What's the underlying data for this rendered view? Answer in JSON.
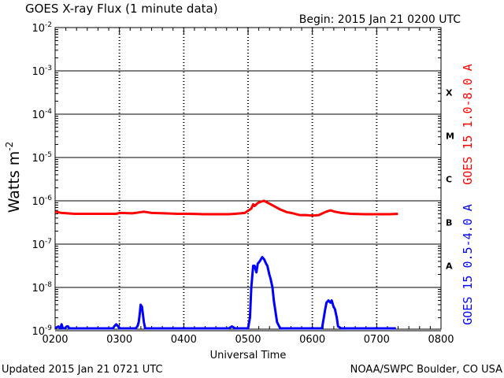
{
  "chart_data": {
    "type": "line",
    "title": "GOES X-ray Flux (1 minute data)",
    "begin_label": "Begin: 2015 Jan 21 0200 UTC",
    "xlabel": "Universal Time",
    "ylabel_main": "Watts m",
    "ylabel_sup": "-2",
    "x_ticks": [
      "0200",
      "0300",
      "0400",
      "0500",
      "0600",
      "0700",
      "0800"
    ],
    "x_range_hours": [
      2,
      8
    ],
    "y_ticks": [
      {
        "base": "10",
        "exp": "-2"
      },
      {
        "base": "10",
        "exp": "-3"
      },
      {
        "base": "10",
        "exp": "-4"
      },
      {
        "base": "10",
        "exp": "-5"
      },
      {
        "base": "10",
        "exp": "-6"
      },
      {
        "base": "10",
        "exp": "-7"
      },
      {
        "base": "10",
        "exp": "-8"
      },
      {
        "base": "10",
        "exp": "-9"
      }
    ],
    "y_scale": "log",
    "y_range_exponent": [
      -9.1,
      -2
    ],
    "flare_classes": [
      {
        "label": "X",
        "level_exp": -3.5
      },
      {
        "label": "M",
        "level_exp": -4.5
      },
      {
        "label": "C",
        "level_exp": -5.5
      },
      {
        "label": "B",
        "level_exp": -6.5
      },
      {
        "label": "A",
        "level_exp": -7.5
      }
    ],
    "series": [
      {
        "name": "GOES 15 1.0-8.0 A",
        "color": "#ff0000",
        "x_hours": [
          2.0,
          2.1,
          2.3,
          2.5,
          2.7,
          2.95,
          3.0,
          3.2,
          3.3,
          3.38,
          3.5,
          3.7,
          3.9,
          4.1,
          4.3,
          4.5,
          4.7,
          4.8,
          4.95,
          5.05,
          5.08,
          5.1,
          5.15,
          5.2,
          5.25,
          5.3,
          5.4,
          5.5,
          5.6,
          5.7,
          5.8,
          5.9,
          6.0,
          6.1,
          6.2,
          6.28,
          6.35,
          6.45,
          6.6,
          6.8,
          7.0,
          7.2,
          7.33
        ],
        "log10_flux": [
          -6.25,
          -6.28,
          -6.3,
          -6.3,
          -6.3,
          -6.3,
          -6.28,
          -6.29,
          -6.27,
          -6.25,
          -6.28,
          -6.29,
          -6.3,
          -6.3,
          -6.31,
          -6.31,
          -6.31,
          -6.3,
          -6.28,
          -6.18,
          -6.08,
          -6.12,
          -6.05,
          -6.02,
          -6.0,
          -6.04,
          -6.12,
          -6.2,
          -6.26,
          -6.29,
          -6.33,
          -6.33,
          -6.34,
          -6.33,
          -6.26,
          -6.22,
          -6.25,
          -6.28,
          -6.3,
          -6.31,
          -6.31,
          -6.31,
          -6.3
        ]
      },
      {
        "name": "GOES 15 0.5-4.0 A",
        "color": "#0000ff",
        "x_hours": [
          2.0,
          2.05,
          2.08,
          2.1,
          2.12,
          2.15,
          2.18,
          2.2,
          2.22,
          2.25,
          2.3,
          2.35,
          2.4,
          2.6,
          2.8,
          2.9,
          2.92,
          2.95,
          2.98,
          3.0,
          3.05,
          3.1,
          3.2,
          3.25,
          3.28,
          3.3,
          3.32,
          3.33,
          3.35,
          3.38,
          3.4,
          3.5,
          3.55,
          3.6,
          3.8,
          4.0,
          4.2,
          4.5,
          4.7,
          4.75,
          4.8,
          4.9,
          4.95,
          5.0,
          5.03,
          5.05,
          5.08,
          5.1,
          5.13,
          5.15,
          5.18,
          5.2,
          5.22,
          5.25,
          5.28,
          5.3,
          5.33,
          5.35,
          5.38,
          5.4,
          5.45,
          5.5,
          5.6,
          5.8,
          6.0,
          6.1,
          6.15,
          6.2,
          6.22,
          6.25,
          6.28,
          6.3,
          6.33,
          6.35,
          6.38,
          6.4,
          6.45,
          6.5,
          6.6,
          6.8,
          7.0,
          7.2,
          7.3
        ],
        "log10_flux": [
          -9.0,
          -8.9,
          -9.0,
          -8.85,
          -8.95,
          -8.95,
          -8.9,
          -8.9,
          -8.95,
          -9.0,
          -9.0,
          -9.0,
          -9.05,
          -9.05,
          -9.05,
          -9.0,
          -8.9,
          -8.85,
          -8.9,
          -8.95,
          -9.0,
          -9.05,
          -9.05,
          -8.95,
          -8.9,
          -8.8,
          -8.55,
          -8.4,
          -8.45,
          -8.8,
          -9.0,
          -9.05,
          -9.0,
          -9.05,
          -9.05,
          -9.05,
          -9.05,
          -9.05,
          -9.05,
          -8.9,
          -9.05,
          -9.05,
          -9.0,
          -9.05,
          -8.7,
          -8.0,
          -7.5,
          -7.5,
          -7.65,
          -7.45,
          -7.4,
          -7.35,
          -7.3,
          -7.35,
          -7.45,
          -7.5,
          -7.7,
          -7.8,
          -8.0,
          -8.3,
          -8.8,
          -9.05,
          -9.05,
          -9.05,
          -9.05,
          -9.05,
          -9.0,
          -8.5,
          -8.35,
          -8.3,
          -8.35,
          -8.3,
          -8.45,
          -8.5,
          -8.7,
          -8.9,
          -9.0,
          -9.05,
          -9.05,
          -9.05,
          -9.05,
          -9.05,
          -9.05
        ]
      }
    ]
  },
  "footer": {
    "updated": "Updated 2015 Jan 21 0721 UTC",
    "source": "NOAA/SWPC Boulder, CO USA"
  }
}
